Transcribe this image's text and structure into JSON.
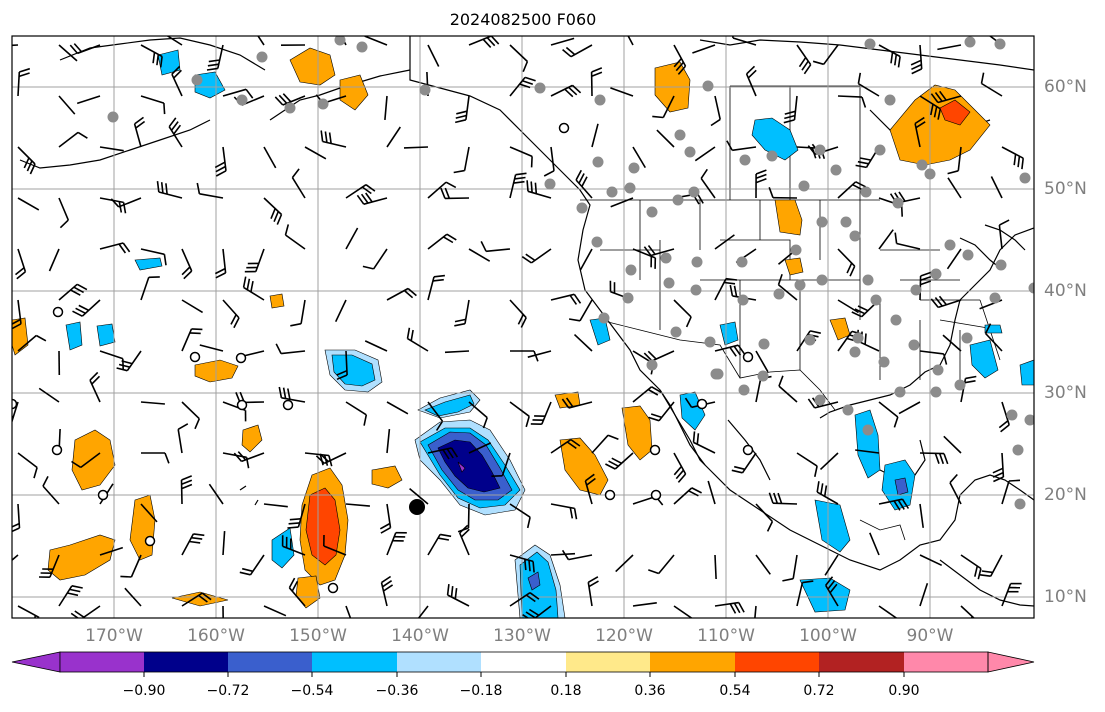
{
  "title": "2024082500 F060",
  "map": {
    "projection": "plate-carree",
    "lon_range": [
      -180,
      -80
    ],
    "lat_range": [
      8,
      65
    ],
    "grid": true,
    "lat_labels": [
      "60°N",
      "50°N",
      "40°N",
      "30°N",
      "20°N",
      "10°N"
    ],
    "lon_labels": [
      "170°W",
      "160°W",
      "150°W",
      "140°W",
      "130°W",
      "120°W",
      "110°W",
      "100°W",
      "90°W"
    ]
  },
  "colorbar": {
    "ticks": [
      "−0.90",
      "−0.72",
      "−0.54",
      "−0.36",
      "−0.18",
      "0.18",
      "0.36",
      "0.54",
      "0.72",
      "0.90"
    ],
    "colors": [
      "#9932cc",
      "#00008b",
      "#3a5fcd",
      "#00bfff",
      "#b0e0ff",
      "#ffffff",
      "#ffe98a",
      "#ffa500",
      "#ff4500",
      "#b22222",
      "#ff88aa"
    ]
  }
}
